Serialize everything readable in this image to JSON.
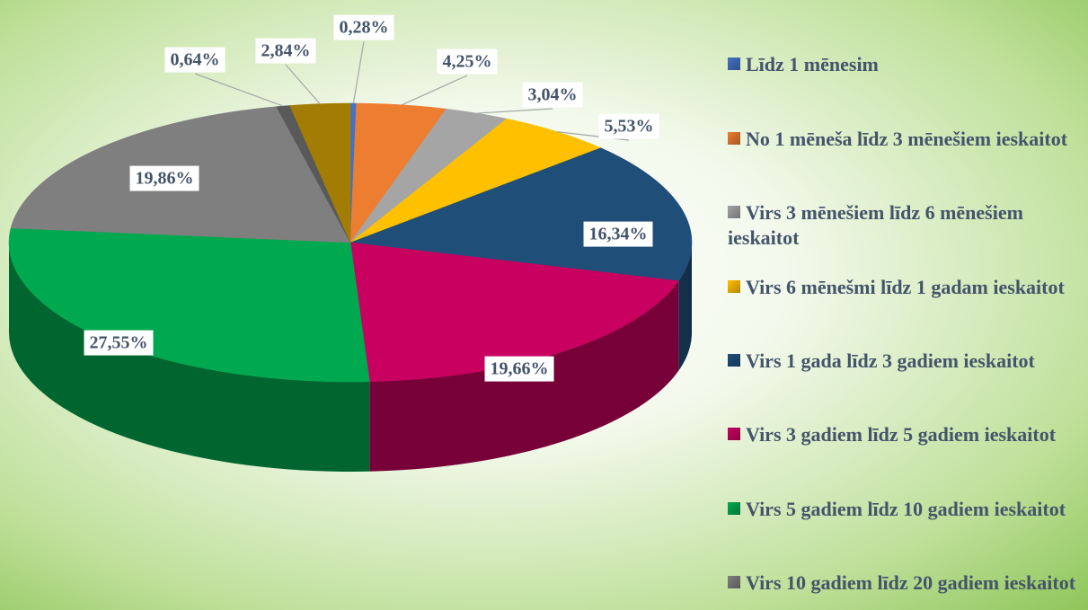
{
  "chart_data": {
    "type": "pie3d",
    "categories": [
      "Līdz 1 mēnesim",
      "No 1 mēneša līdz 3 mēnešiem ieskaitot",
      "Virs 3 mēnešiem līdz 6 mēnešiem ieskaitot",
      "Virs 6 mēnešmi līdz 1 gadam ieskaitot",
      "Virs 1 gada līdz 3 gadiem ieskaitot",
      "Virs 3 gadiem līdz 5 gadiem ieskaitot",
      "Virs 5 gadiem līdz 10 gadiem ieskaitot",
      "Virs 10 gadiem līdz 20 gadiem ieskaitot",
      null,
      null
    ],
    "values": [
      0.28,
      4.25,
      3.04,
      5.53,
      16.34,
      19.66,
      27.55,
      19.86,
      0.64,
      2.84
    ],
    "value_labels": [
      "0,28%",
      "4,25%",
      "3,04%",
      "5,53%",
      "16,34%",
      "19,66%",
      "27,55%",
      "19,86%",
      "0,64%",
      "2,84%"
    ],
    "colors": [
      "#4472c4",
      "#ed7d31",
      "#a5a5a5",
      "#ffc000",
      "#1f4e79",
      "#c8005f",
      "#00a84f",
      "#7f7f7f",
      "#595959",
      "#a37c05"
    ],
    "legend": "right"
  }
}
